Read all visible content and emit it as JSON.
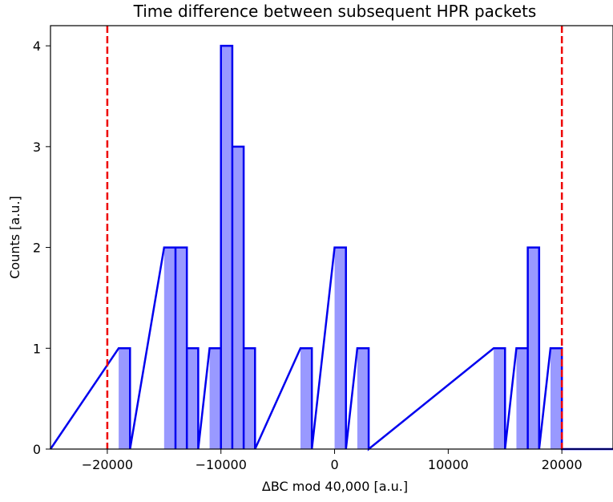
{
  "chart_data": {
    "type": "histogram",
    "title": "Time difference between subsequent HPR packets",
    "xlabel": "ΔBC mod 40,000 [a.u.]",
    "ylabel": "Counts [a.u.]",
    "xlim": [
      -25000,
      24500
    ],
    "ylim": [
      0,
      4.2
    ],
    "xticks": [
      -20000,
      -10000,
      0,
      10000,
      20000
    ],
    "xtick_labels": [
      "−20000",
      "−10000",
      "0",
      "10000",
      "20000"
    ],
    "yticks": [
      0,
      1,
      2,
      3,
      4
    ],
    "ytick_labels": [
      "0",
      "1",
      "2",
      "3",
      "4"
    ],
    "bins": [
      {
        "x0": -19000,
        "x1": -18000,
        "count": 1
      },
      {
        "x0": -15000,
        "x1": -14000,
        "count": 2
      },
      {
        "x0": -14000,
        "x1": -13000,
        "count": 2
      },
      {
        "x0": -13000,
        "x1": -12000,
        "count": 1
      },
      {
        "x0": -11000,
        "x1": -10000,
        "count": 1
      },
      {
        "x0": -10000,
        "x1": -9000,
        "count": 4
      },
      {
        "x0": -9000,
        "x1": -8000,
        "count": 3
      },
      {
        "x0": -8000,
        "x1": -7000,
        "count": 1
      },
      {
        "x0": -3000,
        "x1": -2000,
        "count": 1
      },
      {
        "x0": 0,
        "x1": 1000,
        "count": 2
      },
      {
        "x0": 2000,
        "x1": 3000,
        "count": 1
      },
      {
        "x0": 14000,
        "x1": 15000,
        "count": 1
      },
      {
        "x0": 16000,
        "x1": 17000,
        "count": 1
      },
      {
        "x0": 17000,
        "x1": 18000,
        "count": 2
      },
      {
        "x0": 19000,
        "x1": 20000,
        "count": 1
      }
    ],
    "vlines": [
      -20000,
      20000
    ],
    "colors": {
      "fill": "#9999ff",
      "edge": "#0000ee",
      "vline": "#ee0000"
    },
    "grid": false,
    "legend": "none"
  }
}
